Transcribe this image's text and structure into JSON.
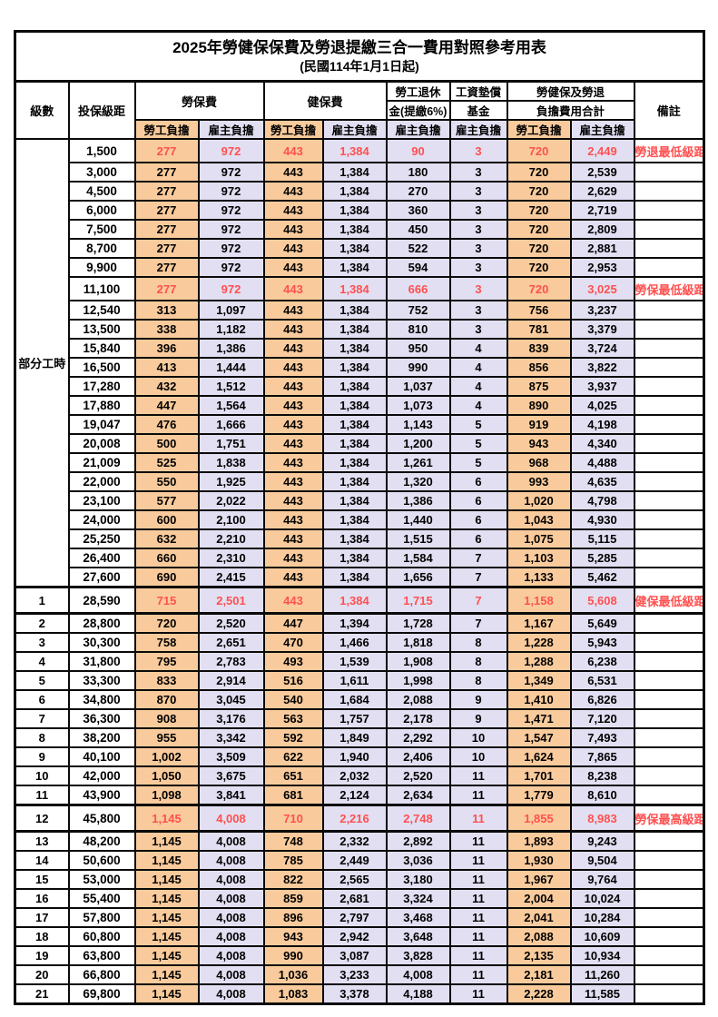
{
  "title": {
    "line1": "2025年勞健保保費及勞退提繳三合一費用對照參考用表",
    "line2": "(民國114年1月1日起)"
  },
  "colors": {
    "orange": "#F9CB9C",
    "lavender": "#E2DFF2",
    "red": "#FF5050",
    "border": "#0a0a0a"
  },
  "header": {
    "level": "級數",
    "bracket": "投保級距",
    "labor_insurance": "勞保費",
    "health_insurance": "健保費",
    "pension_line1": "勞工退休",
    "pension_line2": "金(提繳6%)",
    "wage_fund_line1": "工資墊償",
    "wage_fund_line2": "基金",
    "total_line1": "勞健保及勞退",
    "total_line2": "負擔費用合計",
    "remark": "備註",
    "employee_share": "勞工負擔",
    "employer_share": "雇主負擔"
  },
  "part_time_label": "部分工時",
  "rows": [
    {
      "lv": "",
      "b": "1,500",
      "v": [
        "277",
        "972",
        "443",
        "1,384",
        "90",
        "3",
        "720",
        "2,449"
      ],
      "r": "勞退最低級距",
      "hl": true,
      "tk": false
    },
    {
      "lv": "",
      "b": "3,000",
      "v": [
        "277",
        "972",
        "443",
        "1,384",
        "180",
        "3",
        "720",
        "2,539"
      ],
      "r": "",
      "hl": false,
      "tk": false
    },
    {
      "lv": "",
      "b": "4,500",
      "v": [
        "277",
        "972",
        "443",
        "1,384",
        "270",
        "3",
        "720",
        "2,629"
      ],
      "r": "",
      "hl": false,
      "tk": false
    },
    {
      "lv": "",
      "b": "6,000",
      "v": [
        "277",
        "972",
        "443",
        "1,384",
        "360",
        "3",
        "720",
        "2,719"
      ],
      "r": "",
      "hl": false,
      "tk": false
    },
    {
      "lv": "",
      "b": "7,500",
      "v": [
        "277",
        "972",
        "443",
        "1,384",
        "450",
        "3",
        "720",
        "2,809"
      ],
      "r": "",
      "hl": false,
      "tk": false
    },
    {
      "lv": "",
      "b": "8,700",
      "v": [
        "277",
        "972",
        "443",
        "1,384",
        "522",
        "3",
        "720",
        "2,881"
      ],
      "r": "",
      "hl": false,
      "tk": false
    },
    {
      "lv": "",
      "b": "9,900",
      "v": [
        "277",
        "972",
        "443",
        "1,384",
        "594",
        "3",
        "720",
        "2,953"
      ],
      "r": "",
      "hl": false,
      "tk": false
    },
    {
      "lv": "",
      "b": "11,100",
      "v": [
        "277",
        "972",
        "443",
        "1,384",
        "666",
        "3",
        "720",
        "3,025"
      ],
      "r": "勞保最低級距",
      "hl": true,
      "tk": false
    },
    {
      "lv": "",
      "b": "12,540",
      "v": [
        "313",
        "1,097",
        "443",
        "1,384",
        "752",
        "3",
        "756",
        "3,237"
      ],
      "r": "",
      "hl": false,
      "tk": false
    },
    {
      "lv": "",
      "b": "13,500",
      "v": [
        "338",
        "1,182",
        "443",
        "1,384",
        "810",
        "3",
        "781",
        "3,379"
      ],
      "r": "",
      "hl": false,
      "tk": false
    },
    {
      "lv": "",
      "b": "15,840",
      "v": [
        "396",
        "1,386",
        "443",
        "1,384",
        "950",
        "4",
        "839",
        "3,724"
      ],
      "r": "",
      "hl": false,
      "tk": false
    },
    {
      "lv": "",
      "b": "16,500",
      "v": [
        "413",
        "1,444",
        "443",
        "1,384",
        "990",
        "4",
        "856",
        "3,822"
      ],
      "r": "",
      "hl": false,
      "tk": false
    },
    {
      "lv": "",
      "b": "17,280",
      "v": [
        "432",
        "1,512",
        "443",
        "1,384",
        "1,037",
        "4",
        "875",
        "3,937"
      ],
      "r": "",
      "hl": false,
      "tk": false
    },
    {
      "lv": "",
      "b": "17,880",
      "v": [
        "447",
        "1,564",
        "443",
        "1,384",
        "1,073",
        "4",
        "890",
        "4,025"
      ],
      "r": "",
      "hl": false,
      "tk": false
    },
    {
      "lv": "",
      "b": "19,047",
      "v": [
        "476",
        "1,666",
        "443",
        "1,384",
        "1,143",
        "5",
        "919",
        "4,198"
      ],
      "r": "",
      "hl": false,
      "tk": false
    },
    {
      "lv": "",
      "b": "20,008",
      "v": [
        "500",
        "1,751",
        "443",
        "1,384",
        "1,200",
        "5",
        "943",
        "4,340"
      ],
      "r": "",
      "hl": false,
      "tk": false
    },
    {
      "lv": "",
      "b": "21,009",
      "v": [
        "525",
        "1,838",
        "443",
        "1,384",
        "1,261",
        "5",
        "968",
        "4,488"
      ],
      "r": "",
      "hl": false,
      "tk": false
    },
    {
      "lv": "",
      "b": "22,000",
      "v": [
        "550",
        "1,925",
        "443",
        "1,384",
        "1,320",
        "6",
        "993",
        "4,635"
      ],
      "r": "",
      "hl": false,
      "tk": false
    },
    {
      "lv": "",
      "b": "23,100",
      "v": [
        "577",
        "2,022",
        "443",
        "1,384",
        "1,386",
        "6",
        "1,020",
        "4,798"
      ],
      "r": "",
      "hl": false,
      "tk": false
    },
    {
      "lv": "",
      "b": "24,000",
      "v": [
        "600",
        "2,100",
        "443",
        "1,384",
        "1,440",
        "6",
        "1,043",
        "4,930"
      ],
      "r": "",
      "hl": false,
      "tk": false
    },
    {
      "lv": "",
      "b": "25,250",
      "v": [
        "632",
        "2,210",
        "443",
        "1,384",
        "1,515",
        "6",
        "1,075",
        "5,115"
      ],
      "r": "",
      "hl": false,
      "tk": false
    },
    {
      "lv": "",
      "b": "26,400",
      "v": [
        "660",
        "2,310",
        "443",
        "1,384",
        "1,584",
        "7",
        "1,103",
        "5,285"
      ],
      "r": "",
      "hl": false,
      "tk": false
    },
    {
      "lv": "",
      "b": "27,600",
      "v": [
        "690",
        "2,415",
        "443",
        "1,384",
        "1,656",
        "7",
        "1,133",
        "5,462"
      ],
      "r": "",
      "hl": false,
      "tk": false
    },
    {
      "lv": "1",
      "b": "28,590",
      "v": [
        "715",
        "2,501",
        "443",
        "1,384",
        "1,715",
        "7",
        "1,158",
        "5,608"
      ],
      "r": "健保最低級距",
      "hl": true,
      "tk": true
    },
    {
      "lv": "2",
      "b": "28,800",
      "v": [
        "720",
        "2,520",
        "447",
        "1,394",
        "1,728",
        "7",
        "1,167",
        "5,649"
      ],
      "r": "",
      "hl": false,
      "tk": false
    },
    {
      "lv": "3",
      "b": "30,300",
      "v": [
        "758",
        "2,651",
        "470",
        "1,466",
        "1,818",
        "8",
        "1,228",
        "5,943"
      ],
      "r": "",
      "hl": false,
      "tk": false
    },
    {
      "lv": "4",
      "b": "31,800",
      "v": [
        "795",
        "2,783",
        "493",
        "1,539",
        "1,908",
        "8",
        "1,288",
        "6,238"
      ],
      "r": "",
      "hl": false,
      "tk": false
    },
    {
      "lv": "5",
      "b": "33,300",
      "v": [
        "833",
        "2,914",
        "516",
        "1,611",
        "1,998",
        "8",
        "1,349",
        "6,531"
      ],
      "r": "",
      "hl": false,
      "tk": false
    },
    {
      "lv": "6",
      "b": "34,800",
      "v": [
        "870",
        "3,045",
        "540",
        "1,684",
        "2,088",
        "9",
        "1,410",
        "6,826"
      ],
      "r": "",
      "hl": false,
      "tk": false
    },
    {
      "lv": "7",
      "b": "36,300",
      "v": [
        "908",
        "3,176",
        "563",
        "1,757",
        "2,178",
        "9",
        "1,471",
        "7,120"
      ],
      "r": "",
      "hl": false,
      "tk": false
    },
    {
      "lv": "8",
      "b": "38,200",
      "v": [
        "955",
        "3,342",
        "592",
        "1,849",
        "2,292",
        "10",
        "1,547",
        "7,493"
      ],
      "r": "",
      "hl": false,
      "tk": false
    },
    {
      "lv": "9",
      "b": "40,100",
      "v": [
        "1,002",
        "3,509",
        "622",
        "1,940",
        "2,406",
        "10",
        "1,624",
        "7,865"
      ],
      "r": "",
      "hl": false,
      "tk": false
    },
    {
      "lv": "10",
      "b": "42,000",
      "v": [
        "1,050",
        "3,675",
        "651",
        "2,032",
        "2,520",
        "11",
        "1,701",
        "8,238"
      ],
      "r": "",
      "hl": false,
      "tk": false
    },
    {
      "lv": "11",
      "b": "43,900",
      "v": [
        "1,098",
        "3,841",
        "681",
        "2,124",
        "2,634",
        "11",
        "1,779",
        "8,610"
      ],
      "r": "",
      "hl": false,
      "tk": false
    },
    {
      "lv": "12",
      "b": "45,800",
      "v": [
        "1,145",
        "4,008",
        "710",
        "2,216",
        "2,748",
        "11",
        "1,855",
        "8,983"
      ],
      "r": "勞保最高級距",
      "hl": true,
      "tk": true
    },
    {
      "lv": "13",
      "b": "48,200",
      "v": [
        "1,145",
        "4,008",
        "748",
        "2,332",
        "2,892",
        "11",
        "1,893",
        "9,243"
      ],
      "r": "",
      "hl": false,
      "tk": false
    },
    {
      "lv": "14",
      "b": "50,600",
      "v": [
        "1,145",
        "4,008",
        "785",
        "2,449",
        "3,036",
        "11",
        "1,930",
        "9,504"
      ],
      "r": "",
      "hl": false,
      "tk": false
    },
    {
      "lv": "15",
      "b": "53,000",
      "v": [
        "1,145",
        "4,008",
        "822",
        "2,565",
        "3,180",
        "11",
        "1,967",
        "9,764"
      ],
      "r": "",
      "hl": false,
      "tk": false
    },
    {
      "lv": "16",
      "b": "55,400",
      "v": [
        "1,145",
        "4,008",
        "859",
        "2,681",
        "3,324",
        "11",
        "2,004",
        "10,024"
      ],
      "r": "",
      "hl": false,
      "tk": false
    },
    {
      "lv": "17",
      "b": "57,800",
      "v": [
        "1,145",
        "4,008",
        "896",
        "2,797",
        "3,468",
        "11",
        "2,041",
        "10,284"
      ],
      "r": "",
      "hl": false,
      "tk": false
    },
    {
      "lv": "18",
      "b": "60,800",
      "v": [
        "1,145",
        "4,008",
        "943",
        "2,942",
        "3,648",
        "11",
        "2,088",
        "10,609"
      ],
      "r": "",
      "hl": false,
      "tk": false
    },
    {
      "lv": "19",
      "b": "63,800",
      "v": [
        "1,145",
        "4,008",
        "990",
        "3,087",
        "3,828",
        "11",
        "2,135",
        "10,934"
      ],
      "r": "",
      "hl": false,
      "tk": false
    },
    {
      "lv": "20",
      "b": "66,800",
      "v": [
        "1,145",
        "4,008",
        "1,036",
        "3,233",
        "4,008",
        "11",
        "2,181",
        "11,260"
      ],
      "r": "",
      "hl": false,
      "tk": false
    },
    {
      "lv": "21",
      "b": "69,800",
      "v": [
        "1,145",
        "4,008",
        "1,083",
        "3,378",
        "4,188",
        "11",
        "2,228",
        "11,585"
      ],
      "r": "",
      "hl": false,
      "tk": false
    }
  ]
}
